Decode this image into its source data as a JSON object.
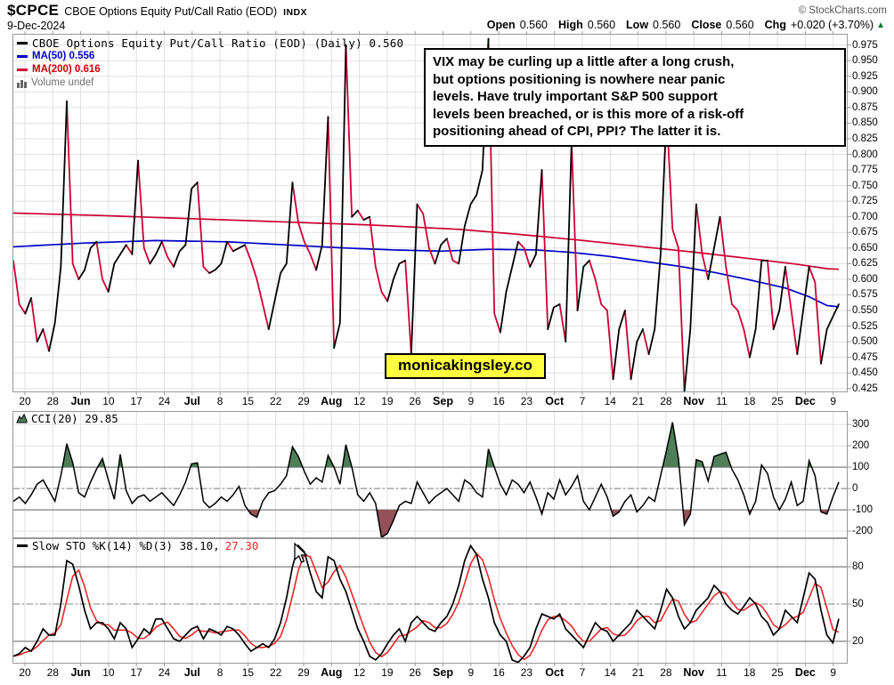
{
  "header": {
    "symbol": "$CPCE",
    "title": "CBOE Options Equity Put/Call Ratio (EOD)",
    "exchange": "INDX",
    "date": "9-Dec-2024",
    "copyright": "© StockCharts.com",
    "quote": {
      "open_label": "Open",
      "open": "0.560",
      "high_label": "High",
      "high": "0.560",
      "low_label": "Low",
      "low": "0.560",
      "close_label": "Close",
      "close": "0.560",
      "chg_label": "Chg",
      "chg": "+0.020 (+3.70%)",
      "chg_arrow": "▲"
    }
  },
  "main_chart": {
    "legend_series": "CBOE Options Equity Put/Call Ratio (EOD) (Daily) 0.560",
    "legend_ma50": "MA(50) 0.556",
    "legend_ma200": "MA(200) 0.616",
    "legend_volume": "Volume undef",
    "annotation_lines": [
      "VIX may be curling up a little after a long crush,",
      "but options positioning is nowhere near panic",
      "levels. Have truly important S&P 500 support",
      "levels been breached, or is this more of a risk-off",
      "positioning ahead of CPI, PPI? The latter it is."
    ],
    "watermark": "monicakingsley.co"
  },
  "cci_panel": {
    "legend": "CCI(20) 29.85"
  },
  "sto_panel": {
    "legend_k": "Slow STO %K(14) %D(3) 38.10,",
    "legend_d": "27.30"
  },
  "colors": {
    "up": "#000000",
    "down": "#cc0033",
    "ma50": "#0000cc",
    "ma200": "#cc0033",
    "cci_line": "#000000",
    "cci_fill_above": "#4f7e58",
    "cci_fill_below": "#94515a",
    "sto_k": "#000000",
    "sto_d": "#e82828",
    "grid": "#e0e0e0",
    "border": "#999999",
    "threshold": "#808080",
    "watermark_bg": "#ffff40",
    "chg_up": "#007a33",
    "legend_vol": "#707070"
  },
  "chart_data": [
    {
      "type": "line",
      "panel": "main",
      "title": "CBOE Options Equity Put/Call Ratio (EOD) (Daily)",
      "last_value": 0.56,
      "ylim": [
        0.419,
        0.993
      ],
      "y_ticks": [
        "0.975",
        "0.950",
        "0.925",
        "0.900",
        "0.875",
        "0.850",
        "0.825",
        "0.800",
        "0.775",
        "0.750",
        "0.725",
        "0.700",
        "0.675",
        "0.650",
        "0.625",
        "0.600",
        "0.575",
        "0.550",
        "0.525",
        "0.500",
        "0.475",
        "0.450",
        "0.425"
      ],
      "x_labels": [
        "20",
        "28",
        "Jun",
        "10",
        "17",
        "24",
        "Jul",
        "8",
        "15",
        "22",
        "29",
        "Aug",
        "12",
        "19",
        "26",
        "Sep",
        "9",
        "16",
        "23",
        "Oct",
        "7",
        "14",
        "21",
        "28",
        "Nov",
        "11",
        "18",
        "25",
        "Dec",
        "9"
      ],
      "series": [
        {
          "name": "CPCE Daily",
          "render": "two_color_line",
          "values": [
            0.63,
            0.56,
            0.545,
            0.57,
            0.5,
            0.52,
            0.485,
            0.53,
            0.62,
            0.885,
            0.625,
            0.6,
            0.615,
            0.65,
            0.66,
            0.6,
            0.58,
            0.625,
            0.64,
            0.655,
            0.64,
            0.79,
            0.65,
            0.625,
            0.64,
            0.66,
            0.635,
            0.62,
            0.645,
            0.655,
            0.745,
            0.755,
            0.62,
            0.61,
            0.615,
            0.625,
            0.66,
            0.645,
            0.65,
            0.655,
            0.63,
            0.6,
            0.56,
            0.52,
            0.565,
            0.61,
            0.625,
            0.755,
            0.69,
            0.66,
            0.64,
            0.615,
            0.655,
            0.86,
            0.49,
            0.53,
            0.975,
            0.7,
            0.71,
            0.695,
            0.7,
            0.62,
            0.58,
            0.565,
            0.6,
            0.625,
            0.63,
            0.48,
            0.72,
            0.705,
            0.65,
            0.625,
            0.655,
            0.665,
            0.63,
            0.625,
            0.685,
            0.72,
            0.735,
            0.775,
            0.985,
            0.545,
            0.515,
            0.58,
            0.62,
            0.66,
            0.65,
            0.62,
            0.64,
            0.775,
            0.52,
            0.555,
            0.56,
            0.5,
            0.82,
            0.55,
            0.62,
            0.63,
            0.6,
            0.56,
            0.55,
            0.44,
            0.52,
            0.55,
            0.44,
            0.5,
            0.52,
            0.48,
            0.52,
            0.64,
            0.87,
            0.68,
            0.65,
            0.42,
            0.52,
            0.72,
            0.64,
            0.6,
            0.65,
            0.7,
            0.62,
            0.56,
            0.55,
            0.52,
            0.475,
            0.52,
            0.63,
            0.63,
            0.52,
            0.55,
            0.62,
            0.55,
            0.48,
            0.55,
            0.62,
            0.595,
            0.465,
            0.52,
            0.54,
            0.56
          ]
        },
        {
          "name": "MA(50)",
          "value": 0.556,
          "keypoints": [
            [
              0,
              0.652
            ],
            [
              12,
              0.658
            ],
            [
              24,
              0.662
            ],
            [
              36,
              0.66
            ],
            [
              48,
              0.654
            ],
            [
              56,
              0.65
            ],
            [
              64,
              0.647
            ],
            [
              72,
              0.645
            ],
            [
              80,
              0.648
            ],
            [
              88,
              0.647
            ],
            [
              94,
              0.643
            ],
            [
              100,
              0.637
            ],
            [
              106,
              0.629
            ],
            [
              112,
              0.621
            ],
            [
              118,
              0.611
            ],
            [
              124,
              0.599
            ],
            [
              130,
              0.586
            ],
            [
              134,
              0.572
            ],
            [
              137,
              0.558
            ],
            [
              139,
              0.556
            ]
          ]
        },
        {
          "name": "MA(200)",
          "value": 0.616,
          "keypoints": [
            [
              0,
              0.706
            ],
            [
              15,
              0.702
            ],
            [
              30,
              0.697
            ],
            [
              45,
              0.692
            ],
            [
              60,
              0.687
            ],
            [
              75,
              0.68
            ],
            [
              85,
              0.672
            ],
            [
              95,
              0.663
            ],
            [
              105,
              0.653
            ],
            [
              115,
              0.643
            ],
            [
              125,
              0.632
            ],
            [
              132,
              0.624
            ],
            [
              137,
              0.617
            ],
            [
              139,
              0.616
            ]
          ]
        }
      ]
    },
    {
      "type": "line",
      "panel": "cci",
      "name": "CCI(20)",
      "last_value": 29.85,
      "ylim": [
        -233,
        363
      ],
      "y_ticks": [
        "300",
        "200",
        "100",
        "0",
        "-100",
        "-200"
      ],
      "hlines": [
        100,
        -100
      ],
      "center_line": 0,
      "fill_above": 100,
      "fill_below": -100,
      "values": [
        -60,
        -40,
        -70,
        -30,
        20,
        40,
        -10,
        -60,
        60,
        210,
        120,
        -20,
        -40,
        30,
        90,
        140,
        40,
        -50,
        160,
        -10,
        -70,
        -40,
        -30,
        -60,
        -40,
        -20,
        -50,
        -80,
        -30,
        30,
        115,
        120,
        -60,
        -90,
        -70,
        -40,
        -60,
        -30,
        10,
        -80,
        -120,
        -135,
        -60,
        -20,
        -10,
        20,
        60,
        195,
        150,
        80,
        20,
        50,
        30,
        155,
        100,
        20,
        205,
        100,
        -30,
        -60,
        -20,
        -70,
        -230,
        -210,
        -150,
        -80,
        -60,
        -70,
        30,
        -20,
        -70,
        -40,
        -20,
        0,
        -30,
        -60,
        40,
        20,
        -20,
        -40,
        185,
        100,
        20,
        -30,
        40,
        20,
        -20,
        30,
        -40,
        -120,
        -20,
        -50,
        40,
        -30,
        10,
        60,
        -60,
        -100,
        -40,
        20,
        -40,
        -130,
        -110,
        -60,
        -30,
        -110,
        -80,
        -40,
        -60,
        60,
        180,
        310,
        140,
        -170,
        -120,
        135,
        125,
        35,
        150,
        160,
        170,
        90,
        40,
        -30,
        -120,
        -60,
        110,
        70,
        -40,
        -100,
        -50,
        30,
        -80,
        -60,
        130,
        60,
        -110,
        -120,
        -40,
        29.85
      ]
    },
    {
      "type": "line",
      "panel": "sto",
      "name": "Slow STO %K(14) %D(3)",
      "k_last": 38.1,
      "d_last": 27.3,
      "d_smoothing": 3,
      "ylim": [
        2,
        103
      ],
      "y_ticks": [
        "80",
        "50",
        "20"
      ],
      "hlines": [
        80,
        20
      ],
      "center_line": 50,
      "k_values": [
        8,
        10,
        15,
        12,
        20,
        30,
        25,
        25,
        50,
        85,
        82,
        65,
        45,
        30,
        35,
        35,
        30,
        22,
        35,
        30,
        15,
        22,
        30,
        26,
        38,
        38,
        30,
        22,
        20,
        25,
        30,
        32,
        22,
        30,
        28,
        25,
        32,
        30,
        25,
        18,
        12,
        15,
        18,
        15,
        22,
        35,
        55,
        80,
        97,
        92,
        75,
        60,
        55,
        88,
        85,
        70,
        60,
        45,
        30,
        20,
        8,
        5,
        10,
        18,
        25,
        30,
        20,
        35,
        40,
        35,
        30,
        28,
        35,
        40,
        50,
        65,
        85,
        97,
        90,
        70,
        55,
        35,
        25,
        20,
        5,
        3,
        8,
        15,
        30,
        42,
        40,
        38,
        42,
        30,
        25,
        20,
        15,
        25,
        35,
        30,
        28,
        20,
        25,
        30,
        35,
        45,
        40,
        35,
        30,
        45,
        62,
        55,
        40,
        30,
        35,
        45,
        50,
        55,
        65,
        60,
        50,
        45,
        42,
        48,
        55,
        50,
        40,
        35,
        25,
        30,
        45,
        40,
        35,
        55,
        75,
        70,
        45,
        25,
        18.8,
        38.1
      ]
    }
  ]
}
